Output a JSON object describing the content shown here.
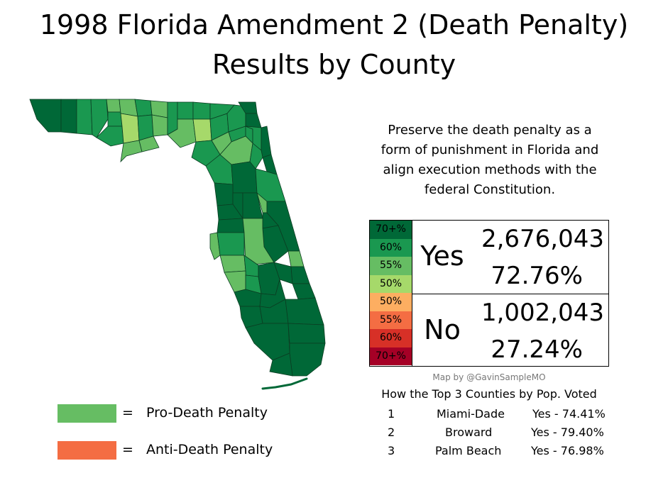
{
  "title": {
    "line1": "1998 Florida Amendment 2 (Death Penalty)",
    "line2": "Results by County"
  },
  "description": [
    "Preserve the death penalty as a",
    "form of punishment in Florida and",
    "align execution methods with the",
    "federal Constitution."
  ],
  "scale": {
    "yes": [
      {
        "label": "70+%",
        "color": "#006837"
      },
      {
        "label": "60%",
        "color": "#1a9850"
      },
      {
        "label": "55%",
        "color": "#66bd63"
      },
      {
        "label": "50%",
        "color": "#a6d96a"
      }
    ],
    "no": [
      {
        "label": "50%",
        "color": "#fdae61"
      },
      {
        "label": "55%",
        "color": "#f46d43"
      },
      {
        "label": "60%",
        "color": "#d73027"
      },
      {
        "label": "70+%",
        "color": "#a50026"
      }
    ]
  },
  "results": {
    "yes": {
      "label": "Yes",
      "votes": "2,676,043",
      "percent": "72.76%"
    },
    "no": {
      "label": "No",
      "votes": "1,002,043",
      "percent": "27.24%"
    }
  },
  "credit": "Map by @GavinSampleMO",
  "top_counties": {
    "heading": "How the Top 3 Counties by Pop. Voted",
    "rows": [
      {
        "rank": "1",
        "county": "Miami-Dade",
        "result": "Yes - 74.41%"
      },
      {
        "rank": "2",
        "county": "Broward",
        "result": "Yes - 79.40%"
      },
      {
        "rank": "3",
        "county": "Palm Beach",
        "result": "Yes - 76.98%"
      }
    ]
  },
  "legend": [
    {
      "symbol": "=",
      "label": "Pro-Death Penalty",
      "color": "#66bd63"
    },
    {
      "symbol": "=",
      "label": "Anti-Death Penalty",
      "color": "#f46d43"
    }
  ],
  "map_colors": {
    "darkest": "#006837",
    "dark": "#1a9850",
    "medium": "#66bd63",
    "light": "#a6d96a",
    "county_lines": "#0b3d22"
  }
}
